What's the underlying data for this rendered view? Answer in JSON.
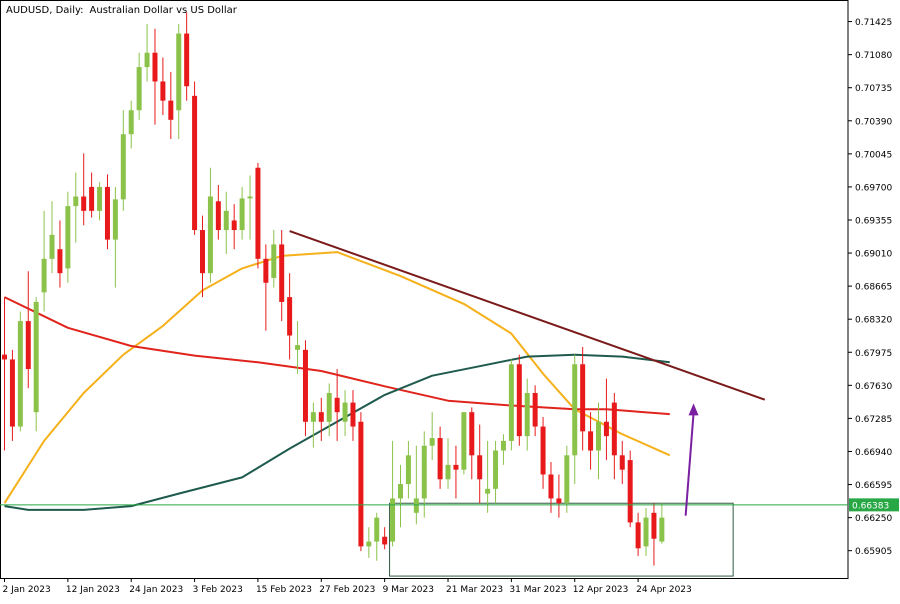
{
  "header": {
    "symbol": "AUDUSD, Daily:",
    "description": "Australian Dollar vs US Dollar"
  },
  "price_tag": "0.66383",
  "colors": {
    "bull": "#8bc34a",
    "bear": "#e8191b",
    "ma_fast": "#f5b01a",
    "ma_mid": "#e0241c",
    "ma_slow": "#1e5a4e",
    "trendline": "#7a1a1a",
    "arrow": "#7a1fa2",
    "hline": "#27a844",
    "box": "#2f5a3f",
    "axis": "#000000"
  },
  "icons": [
    "arrow-up-icon"
  ],
  "chart_data": {
    "type": "candlestick",
    "title": "AUDUSD, Daily:  Australian Dollar vs US Dollar",
    "ylim": [
      0.6562,
      0.7165
    ],
    "y_ticks": [
      "0.71425",
      "0.71080",
      "0.70735",
      "0.70390",
      "0.70045",
      "0.69700",
      "0.69355",
      "0.69010",
      "0.68665",
      "0.68320",
      "0.67975",
      "0.67630",
      "0.67285",
      "0.66940",
      "0.66595",
      "0.66250",
      "0.65905"
    ],
    "x_ticks": [
      {
        "label": "2 Jan 2023",
        "index": 0
      },
      {
        "label": "12 Jan 2023",
        "index": 8
      },
      {
        "label": "24 Jan 2023",
        "index": 16
      },
      {
        "label": "3 Feb 2023",
        "index": 24
      },
      {
        "label": "15 Feb 2023",
        "index": 32
      },
      {
        "label": "27 Feb 2023",
        "index": 40
      },
      {
        "label": "9 Mar 2023",
        "index": 48
      },
      {
        "label": "21 Mar 2023",
        "index": 56
      },
      {
        "label": "31 Mar 2023",
        "index": 64
      },
      {
        "label": "12 Apr 2023",
        "index": 72
      },
      {
        "label": "24 Apr 2023",
        "index": 80
      }
    ],
    "candles": [
      {
        "o": 0.6795,
        "h": 0.6855,
        "l": 0.6695,
        "c": 0.679
      },
      {
        "o": 0.679,
        "h": 0.68,
        "l": 0.6705,
        "c": 0.672
      },
      {
        "o": 0.672,
        "h": 0.684,
        "l": 0.6715,
        "c": 0.683
      },
      {
        "o": 0.683,
        "h": 0.6882,
        "l": 0.676,
        "c": 0.678
      },
      {
        "o": 0.6735,
        "h": 0.6855,
        "l": 0.6715,
        "c": 0.685
      },
      {
        "o": 0.686,
        "h": 0.6945,
        "l": 0.684,
        "c": 0.6895
      },
      {
        "o": 0.6895,
        "h": 0.6955,
        "l": 0.688,
        "c": 0.692
      },
      {
        "o": 0.6905,
        "h": 0.6935,
        "l": 0.6865,
        "c": 0.688
      },
      {
        "o": 0.6885,
        "h": 0.6965,
        "l": 0.687,
        "c": 0.695
      },
      {
        "o": 0.695,
        "h": 0.6985,
        "l": 0.6912,
        "c": 0.696
      },
      {
        "o": 0.696,
        "h": 0.7005,
        "l": 0.693,
        "c": 0.6945
      },
      {
        "o": 0.697,
        "h": 0.6985,
        "l": 0.6938,
        "c": 0.6945
      },
      {
        "o": 0.6945,
        "h": 0.6975,
        "l": 0.6935,
        "c": 0.697
      },
      {
        "o": 0.697,
        "h": 0.6983,
        "l": 0.6905,
        "c": 0.6915
      },
      {
        "o": 0.6915,
        "h": 0.697,
        "l": 0.6865,
        "c": 0.6957
      },
      {
        "o": 0.6957,
        "h": 0.705,
        "l": 0.6945,
        "c": 0.7025
      },
      {
        "o": 0.7025,
        "h": 0.706,
        "l": 0.701,
        "c": 0.705
      },
      {
        "o": 0.705,
        "h": 0.711,
        "l": 0.704,
        "c": 0.7095
      },
      {
        "o": 0.7095,
        "h": 0.714,
        "l": 0.708,
        "c": 0.711
      },
      {
        "o": 0.711,
        "h": 0.7135,
        "l": 0.7035,
        "c": 0.708
      },
      {
        "o": 0.708,
        "h": 0.7105,
        "l": 0.7045,
        "c": 0.706
      },
      {
        "o": 0.706,
        "h": 0.709,
        "l": 0.702,
        "c": 0.704
      },
      {
        "o": 0.705,
        "h": 0.714,
        "l": 0.702,
        "c": 0.713
      },
      {
        "o": 0.713,
        "h": 0.7152,
        "l": 0.706,
        "c": 0.7075
      },
      {
        "o": 0.7065,
        "h": 0.708,
        "l": 0.692,
        "c": 0.6925
      },
      {
        "o": 0.6925,
        "h": 0.694,
        "l": 0.6855,
        "c": 0.688
      },
      {
        "o": 0.688,
        "h": 0.699,
        "l": 0.687,
        "c": 0.696
      },
      {
        "o": 0.6955,
        "h": 0.6972,
        "l": 0.6915,
        "c": 0.6925
      },
      {
        "o": 0.6925,
        "h": 0.6965,
        "l": 0.69,
        "c": 0.6945
      },
      {
        "o": 0.6935,
        "h": 0.6952,
        "l": 0.6905,
        "c": 0.6925
      },
      {
        "o": 0.6925,
        "h": 0.697,
        "l": 0.6915,
        "c": 0.6958
      },
      {
        "o": 0.6958,
        "h": 0.6982,
        "l": 0.6915,
        "c": 0.696
      },
      {
        "o": 0.699,
        "h": 0.6995,
        "l": 0.6885,
        "c": 0.6895
      },
      {
        "o": 0.6895,
        "h": 0.691,
        "l": 0.682,
        "c": 0.687
      },
      {
        "o": 0.6875,
        "h": 0.6925,
        "l": 0.6865,
        "c": 0.691
      },
      {
        "o": 0.691,
        "h": 0.6925,
        "l": 0.683,
        "c": 0.685
      },
      {
        "o": 0.6855,
        "h": 0.688,
        "l": 0.679,
        "c": 0.6815
      },
      {
        "o": 0.68,
        "h": 0.683,
        "l": 0.6775,
        "c": 0.6805
      },
      {
        "o": 0.68,
        "h": 0.681,
        "l": 0.671,
        "c": 0.6725
      },
      {
        "o": 0.6725,
        "h": 0.6745,
        "l": 0.6698,
        "c": 0.6735
      },
      {
        "o": 0.6735,
        "h": 0.675,
        "l": 0.6705,
        "c": 0.6725
      },
      {
        "o": 0.6725,
        "h": 0.6765,
        "l": 0.671,
        "c": 0.6755
      },
      {
        "o": 0.675,
        "h": 0.678,
        "l": 0.6705,
        "c": 0.6735
      },
      {
        "o": 0.6725,
        "h": 0.6758,
        "l": 0.671,
        "c": 0.6745
      },
      {
        "o": 0.6745,
        "h": 0.6758,
        "l": 0.6705,
        "c": 0.672
      },
      {
        "o": 0.6725,
        "h": 0.6735,
        "l": 0.659,
        "c": 0.6595
      },
      {
        "o": 0.6595,
        "h": 0.6615,
        "l": 0.6583,
        "c": 0.66
      },
      {
        "o": 0.66,
        "h": 0.663,
        "l": 0.658,
        "c": 0.6625
      },
      {
        "o": 0.6605,
        "h": 0.6615,
        "l": 0.6592,
        "c": 0.6597
      },
      {
        "o": 0.66,
        "h": 0.6705,
        "l": 0.6595,
        "c": 0.6645
      },
      {
        "o": 0.6645,
        "h": 0.668,
        "l": 0.6615,
        "c": 0.666
      },
      {
        "o": 0.666,
        "h": 0.6705,
        "l": 0.6645,
        "c": 0.669
      },
      {
        "o": 0.663,
        "h": 0.67,
        "l": 0.6618,
        "c": 0.6645
      },
      {
        "o": 0.6645,
        "h": 0.6715,
        "l": 0.6625,
        "c": 0.67
      },
      {
        "o": 0.67,
        "h": 0.6735,
        "l": 0.6685,
        "c": 0.6708
      },
      {
        "o": 0.6708,
        "h": 0.672,
        "l": 0.6655,
        "c": 0.6665
      },
      {
        "o": 0.6665,
        "h": 0.6708,
        "l": 0.6655,
        "c": 0.668
      },
      {
        "o": 0.668,
        "h": 0.67,
        "l": 0.6645,
        "c": 0.6675
      },
      {
        "o": 0.6675,
        "h": 0.6735,
        "l": 0.667,
        "c": 0.6735
      },
      {
        "o": 0.6735,
        "h": 0.674,
        "l": 0.6665,
        "c": 0.669
      },
      {
        "o": 0.669,
        "h": 0.6722,
        "l": 0.664,
        "c": 0.6665
      },
      {
        "o": 0.665,
        "h": 0.6705,
        "l": 0.663,
        "c": 0.6655
      },
      {
        "o": 0.6655,
        "h": 0.6705,
        "l": 0.664,
        "c": 0.6695
      },
      {
        "o": 0.6695,
        "h": 0.6712,
        "l": 0.668,
        "c": 0.6705
      },
      {
        "o": 0.6705,
        "h": 0.679,
        "l": 0.6695,
        "c": 0.6785
      },
      {
        "o": 0.6785,
        "h": 0.6795,
        "l": 0.67,
        "c": 0.671
      },
      {
        "o": 0.671,
        "h": 0.677,
        "l": 0.6695,
        "c": 0.6755
      },
      {
        "o": 0.6755,
        "h": 0.6763,
        "l": 0.671,
        "c": 0.672
      },
      {
        "o": 0.672,
        "h": 0.673,
        "l": 0.6655,
        "c": 0.667
      },
      {
        "o": 0.667,
        "h": 0.6683,
        "l": 0.663,
        "c": 0.6645
      },
      {
        "o": 0.6645,
        "h": 0.667,
        "l": 0.6625,
        "c": 0.664
      },
      {
        "o": 0.664,
        "h": 0.67,
        "l": 0.663,
        "c": 0.669
      },
      {
        "o": 0.669,
        "h": 0.6795,
        "l": 0.666,
        "c": 0.6785
      },
      {
        "o": 0.6785,
        "h": 0.6803,
        "l": 0.6695,
        "c": 0.6715
      },
      {
        "o": 0.6715,
        "h": 0.6735,
        "l": 0.6675,
        "c": 0.6695
      },
      {
        "o": 0.6695,
        "h": 0.6745,
        "l": 0.6665,
        "c": 0.6725
      },
      {
        "o": 0.6725,
        "h": 0.677,
        "l": 0.6685,
        "c": 0.671
      },
      {
        "o": 0.6745,
        "h": 0.6755,
        "l": 0.6665,
        "c": 0.669
      },
      {
        "o": 0.669,
        "h": 0.6705,
        "l": 0.666,
        "c": 0.6675
      },
      {
        "o": 0.6685,
        "h": 0.6695,
        "l": 0.6615,
        "c": 0.662
      },
      {
        "o": 0.662,
        "h": 0.663,
        "l": 0.6585,
        "c": 0.6593
      },
      {
        "o": 0.6595,
        "h": 0.6635,
        "l": 0.6585,
        "c": 0.6625
      },
      {
        "o": 0.663,
        "h": 0.664,
        "l": 0.6575,
        "c": 0.6603
      },
      {
        "o": 0.66,
        "h": 0.664,
        "l": 0.6598,
        "c": 0.6625
      }
    ],
    "series": [
      {
        "kind": "moving-average",
        "color_key": "ma_fast",
        "points": [
          [
            0,
            0.664
          ],
          [
            5,
            0.6705
          ],
          [
            10,
            0.6755
          ],
          [
            15,
            0.6795
          ],
          [
            20,
            0.6825
          ],
          [
            25,
            0.6862
          ],
          [
            30,
            0.6885
          ],
          [
            35,
            0.6898
          ],
          [
            42,
            0.6902
          ],
          [
            50,
            0.6877
          ],
          [
            58,
            0.6848
          ],
          [
            64,
            0.6817
          ],
          [
            68,
            0.6775
          ],
          [
            72,
            0.6738
          ],
          [
            78,
            0.6712
          ],
          [
            84,
            0.669
          ]
        ]
      },
      {
        "kind": "moving-average",
        "color_key": "ma_mid",
        "points": [
          [
            0,
            0.6855
          ],
          [
            8,
            0.6823
          ],
          [
            16,
            0.6804
          ],
          [
            24,
            0.6794
          ],
          [
            32,
            0.6787
          ],
          [
            40,
            0.6778
          ],
          [
            48,
            0.6762
          ],
          [
            56,
            0.6747
          ],
          [
            64,
            0.6742
          ],
          [
            72,
            0.6738
          ],
          [
            76,
            0.6738
          ],
          [
            84,
            0.6733
          ]
        ]
      },
      {
        "kind": "moving-average",
        "color_key": "ma_slow",
        "points": [
          [
            0,
            0.6637
          ],
          [
            3,
            0.6633
          ],
          [
            10,
            0.6633
          ],
          [
            16,
            0.6637
          ],
          [
            22,
            0.665
          ],
          [
            30,
            0.6667
          ],
          [
            36,
            0.6697
          ],
          [
            42,
            0.6725
          ],
          [
            48,
            0.6753
          ],
          [
            54,
            0.6773
          ],
          [
            60,
            0.6783
          ],
          [
            66,
            0.6793
          ],
          [
            72,
            0.6795
          ],
          [
            78,
            0.6793
          ],
          [
            84,
            0.6787
          ]
        ]
      }
    ],
    "trendline": {
      "from": [
        36,
        0.6924
      ],
      "to": [
        96,
        0.6748
      ]
    },
    "horizontal_line": 0.66383,
    "range_box": {
      "x_from": 49,
      "x_to": 92,
      "y_from": 0.6564,
      "y_to": 0.664
    },
    "projection_arrow": {
      "from": [
        86,
        0.6627
      ],
      "to": [
        87,
        0.674
      ]
    }
  }
}
